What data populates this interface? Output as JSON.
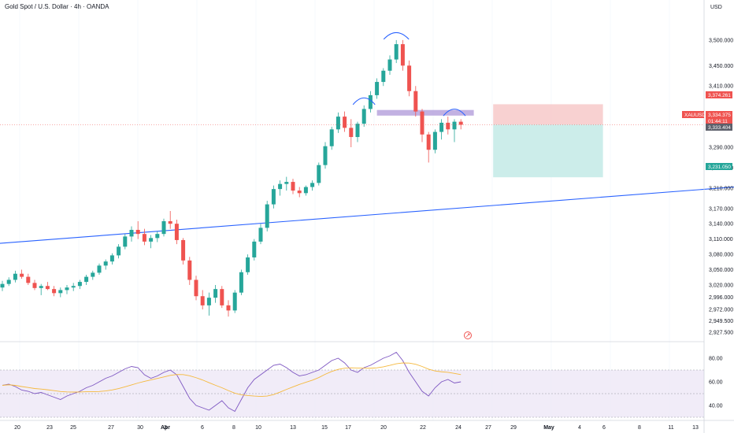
{
  "header": {
    "title": "Gold Spot / U.S. Dollar · 4h · OANDA",
    "currency": "USD"
  },
  "colors": {
    "up": "#26a69a",
    "down": "#ef5350",
    "trendline": "#2962ff",
    "resistance_zone": "#b39ddb",
    "stop_zone": "#f7c9c9",
    "target_zone": "#c7ebe8",
    "rsi_line": "#7e57c2",
    "rsi_ma": "#f5b93d",
    "rsi_band": "#ede7f6",
    "last_price": "#ef5350",
    "target_tag": "#26a69a"
  },
  "price_axis": {
    "ticks": [
      "3,500.000",
      "3,450.000",
      "3,410.000",
      "3,290.000",
      "3,250.000",
      "3,210.000",
      "3,170.000",
      "3,140.000",
      "3,110.000",
      "3,080.000",
      "3,050.000",
      "3,020.000",
      "2,996.000",
      "2,972.000",
      "2,949.500",
      "2,927.500"
    ],
    "tags": {
      "stop": "3,374.261",
      "symbol": "XAUUSD",
      "last": "3,334.375",
      "countdown": "01:44:11",
      "prev": "3,333.404",
      "target": "3,231.050"
    }
  },
  "time_axis": {
    "labels": [
      "20",
      "23",
      "25",
      "27",
      "30",
      "Apr",
      "3",
      "6",
      "8",
      "10",
      "13",
      "15",
      "17",
      "20",
      "22",
      "24",
      "27",
      "29",
      "May",
      "4",
      "6",
      "8",
      "11",
      "13"
    ]
  },
  "rsi_axis": {
    "ticks": [
      "80.00",
      "60.00",
      "40.00"
    ]
  },
  "chart_data": [
    {
      "type": "candlestick",
      "symbol": "XAUUSD",
      "timeframe": "4h",
      "y_range": [
        2915,
        3540
      ],
      "ohlc": [
        [
          3015,
          3028,
          3008,
          3022
        ],
        [
          3022,
          3035,
          3018,
          3030
        ],
        [
          3030,
          3048,
          3025,
          3042
        ],
        [
          3042,
          3050,
          3032,
          3036
        ],
        [
          3036,
          3042,
          3020,
          3024
        ],
        [
          3024,
          3030,
          3010,
          3014
        ],
        [
          3014,
          3022,
          3000,
          3018
        ],
        [
          3018,
          3026,
          3010,
          3012
        ],
        [
          3012,
          3018,
          2998,
          3004
        ],
        [
          3004,
          3015,
          2996,
          3010
        ],
        [
          3010,
          3020,
          3002,
          3015
        ],
        [
          3015,
          3024,
          3008,
          3018
        ],
        [
          3018,
          3030,
          3012,
          3026
        ],
        [
          3026,
          3040,
          3020,
          3036
        ],
        [
          3036,
          3048,
          3030,
          3044
        ],
        [
          3044,
          3062,
          3040,
          3058
        ],
        [
          3058,
          3070,
          3050,
          3066
        ],
        [
          3066,
          3082,
          3060,
          3078
        ],
        [
          3078,
          3100,
          3072,
          3095
        ],
        [
          3095,
          3120,
          3090,
          3115
        ],
        [
          3115,
          3135,
          3105,
          3128
        ],
        [
          3128,
          3145,
          3110,
          3120
        ],
        [
          3120,
          3130,
          3098,
          3105
        ],
        [
          3105,
          3118,
          3092,
          3112
        ],
        [
          3112,
          3125,
          3104,
          3120
        ],
        [
          3120,
          3150,
          3115,
          3145
        ],
        [
          3145,
          3165,
          3130,
          3140
        ],
        [
          3140,
          3148,
          3100,
          3108
        ],
        [
          3108,
          3112,
          3060,
          3068
        ],
        [
          3068,
          3075,
          3020,
          3030
        ],
        [
          3030,
          3038,
          2990,
          2998
        ],
        [
          2998,
          3010,
          2972,
          2980
        ],
        [
          2980,
          3005,
          2960,
          2995
        ],
        [
          2995,
          3020,
          2985,
          3012
        ],
        [
          3012,
          3018,
          2975,
          2980
        ],
        [
          2980,
          2990,
          2958,
          2970
        ],
        [
          2970,
          3010,
          2965,
          3005
        ],
        [
          3005,
          3050,
          3000,
          3045
        ],
        [
          3045,
          3080,
          3040,
          3074
        ],
        [
          3074,
          3110,
          3068,
          3105
        ],
        [
          3105,
          3140,
          3100,
          3132
        ],
        [
          3132,
          3185,
          3125,
          3178
        ],
        [
          3178,
          3215,
          3170,
          3208
        ],
        [
          3208,
          3225,
          3195,
          3218
        ],
        [
          3218,
          3232,
          3205,
          3222
        ],
        [
          3222,
          3228,
          3198,
          3205
        ],
        [
          3205,
          3212,
          3192,
          3200
        ],
        [
          3200,
          3215,
          3195,
          3212
        ],
        [
          3212,
          3225,
          3205,
          3220
        ],
        [
          3220,
          3260,
          3215,
          3255
        ],
        [
          3255,
          3300,
          3248,
          3292
        ],
        [
          3292,
          3330,
          3285,
          3325
        ],
        [
          3325,
          3358,
          3318,
          3350
        ],
        [
          3350,
          3360,
          3320,
          3328
        ],
        [
          3328,
          3345,
          3290,
          3310
        ],
        [
          3310,
          3340,
          3300,
          3336
        ],
        [
          3336,
          3372,
          3330,
          3365
        ],
        [
          3365,
          3400,
          3358,
          3392
        ],
        [
          3392,
          3425,
          3385,
          3418
        ],
        [
          3418,
          3445,
          3410,
          3440
        ],
        [
          3440,
          3470,
          3432,
          3462
        ],
        [
          3462,
          3500,
          3455,
          3492
        ],
        [
          3492,
          3500,
          3440,
          3450
        ],
        [
          3450,
          3460,
          3390,
          3400
        ],
        [
          3400,
          3410,
          3350,
          3360
        ],
        [
          3360,
          3365,
          3300,
          3315
        ],
        [
          3315,
          3320,
          3260,
          3285
        ],
        [
          3285,
          3325,
          3278,
          3320
        ],
        [
          3320,
          3345,
          3305,
          3338
        ],
        [
          3338,
          3350,
          3315,
          3325
        ],
        [
          3325,
          3345,
          3300,
          3340
        ],
        [
          3340,
          3345,
          3325,
          3334
        ]
      ],
      "trendline": {
        "start": {
          "bar": -2,
          "price": 3100
        },
        "end": {
          "bar": 139,
          "price": 3237
        }
      },
      "resistance_zone": {
        "from_bar": 58,
        "to_bar": 73,
        "low": 3352,
        "high": 3363
      },
      "position": {
        "from_bar": 76,
        "to_bar": 93,
        "entry": 3334.375,
        "stop": 3374.261,
        "target": 3231.05
      }
    },
    {
      "type": "line",
      "name": "RSI",
      "y_range": [
        30,
        90
      ],
      "overbought": 70,
      "oversold": 30,
      "midline": 50,
      "rsi": [
        57,
        58,
        56,
        53,
        52,
        50,
        51,
        49,
        47,
        45,
        48,
        50,
        52,
        55,
        57,
        60,
        63,
        65,
        68,
        71,
        73,
        72,
        66,
        63,
        65,
        68,
        70,
        66,
        56,
        46,
        40,
        38,
        36,
        40,
        44,
        38,
        35,
        45,
        55,
        62,
        66,
        70,
        74,
        75,
        72,
        68,
        65,
        66,
        68,
        70,
        74,
        78,
        80,
        76,
        70,
        68,
        72,
        74,
        77,
        80,
        82,
        85,
        78,
        68,
        60,
        52,
        48,
        55,
        60,
        62,
        59,
        60
      ]
    }
  ]
}
